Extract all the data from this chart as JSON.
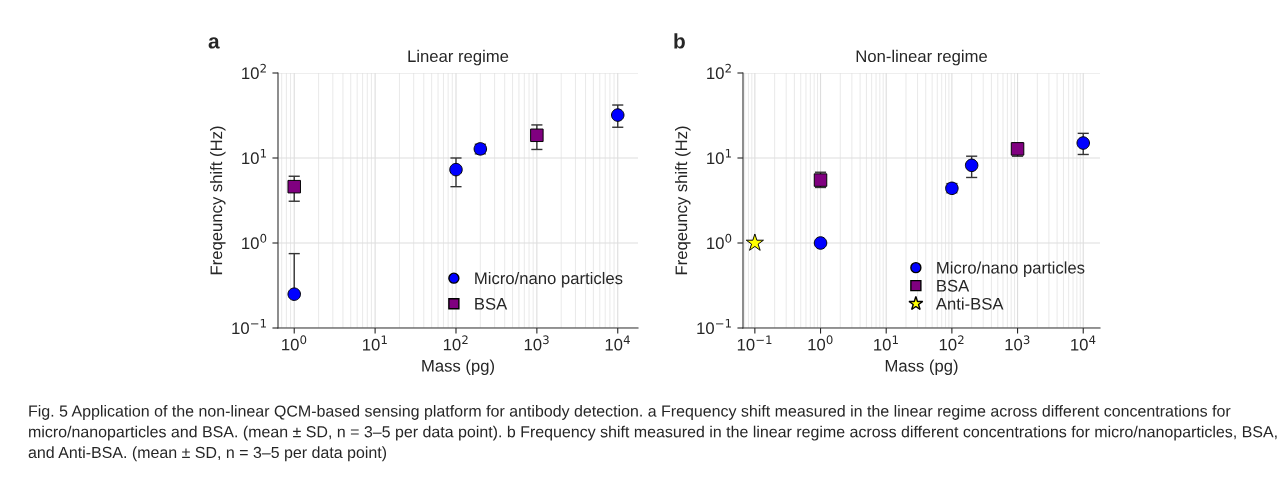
{
  "chart_data": [
    {
      "type": "scatter",
      "title": "Linear regime",
      "xlabel": "Mass (pg)",
      "ylabel": "Freqeuncy shift (Hz)",
      "log": "xy",
      "xlim": [
        0.63,
        17800
      ],
      "ylim": [
        0.1,
        100
      ],
      "xticks": [
        {
          "value": 1,
          "label": "10$^{0}$"
        },
        {
          "value": 10,
          "label": "10$^{1}$"
        },
        {
          "value": 100,
          "label": "10$^{2}$"
        },
        {
          "value": 1000,
          "label": "10$^{3}$"
        },
        {
          "value": 10000,
          "label": "10$^{4}$"
        }
      ],
      "yticks": [
        {
          "value": 0.1,
          "label": "10$^{−1}$"
        },
        {
          "value": 1,
          "label": "10$^{0}$"
        },
        {
          "value": 10,
          "label": "10$^{1}$"
        },
        {
          "value": 100,
          "label": "10$^{2}$"
        }
      ],
      "grid": true,
      "legend": "bottom right",
      "annotations": [
        "a"
      ],
      "series": [
        {
          "name": "Micro/nano particles",
          "color": "#0000ff",
          "marker": "circle",
          "x": [
            1,
            100,
            200,
            10000
          ],
          "values": [
            0.25,
            7.3,
            12.8,
            32
          ],
          "errors": [
            [
              0.25,
              0.75
            ],
            [
              4.6,
              10
            ],
            [
              11.2,
              14.5
            ],
            [
              23,
              42
            ]
          ]
        },
        {
          "name": "BSA",
          "color": "#800080",
          "marker": "square",
          "x": [
            1,
            1000
          ],
          "values": [
            4.6,
            18.5
          ],
          "errors": [
            [
              3.1,
              6.1
            ],
            [
              12.6,
              24.5
            ]
          ]
        }
      ]
    },
    {
      "type": "scatter",
      "title": "Non-linear regime",
      "xlabel": "Mass (pg)",
      "ylabel": "Freqeuncy shift (Hz)",
      "log": "xy",
      "xlim": [
        0.066,
        18000
      ],
      "ylim": [
        0.1,
        100
      ],
      "xticks": [
        {
          "value": 0.1,
          "label": "10$^{−1}$"
        },
        {
          "value": 1,
          "label": "10$^{0}$"
        },
        {
          "value": 10,
          "label": "10$^{1}$"
        },
        {
          "value": 100,
          "label": "10$^{2}$"
        },
        {
          "value": 1000,
          "label": "10$^{3}$"
        },
        {
          "value": 10000,
          "label": "10$^{4}$"
        }
      ],
      "yticks": [
        {
          "value": 0.1,
          "label": "10$^{−1}$"
        },
        {
          "value": 1,
          "label": "10$^{0}$"
        },
        {
          "value": 10,
          "label": "10$^{1}$"
        },
        {
          "value": 100,
          "label": "10$^{2}$"
        }
      ],
      "grid": true,
      "legend": "bottom right",
      "annotations": [
        "b",
        "Fig. 5 Application of the non-linear QCM-based sensing platform for antibody detection. a Frequency shift measured in the linear regime across different concentrations for micro/nanoparticles and BSA. (mean ± SD, n = 3–5 per data point). b Frequency shift measured in the linear regime across different concentrations for micro/nanoparticles, BSA, and Anti-BSA. (mean ± SD, n = 3–5 per data point)"
      ],
      "series": [
        {
          "name": "Micro/nano particles",
          "color": "#0000ff",
          "marker": "circle",
          "x": [
            1,
            100,
            200,
            10000
          ],
          "values": [
            1.0,
            4.4,
            8.2,
            15
          ],
          "errors": [
            null,
            [
              3.9,
              5.0
            ],
            [
              5.9,
              10.5
            ],
            [
              11,
              19.5
            ]
          ]
        },
        {
          "name": "BSA",
          "color": "#800080",
          "marker": "square",
          "x": [
            1,
            1000
          ],
          "values": [
            5.5,
            12.8
          ],
          "errors": [
            [
              4.5,
              6.8
            ],
            [
              10.5,
              15
            ]
          ]
        },
        {
          "name": "Anti-BSA",
          "color": "#ffff00",
          "marker": "star",
          "x": [
            0.1
          ],
          "values": [
            1.0
          ]
        }
      ]
    }
  ]
}
